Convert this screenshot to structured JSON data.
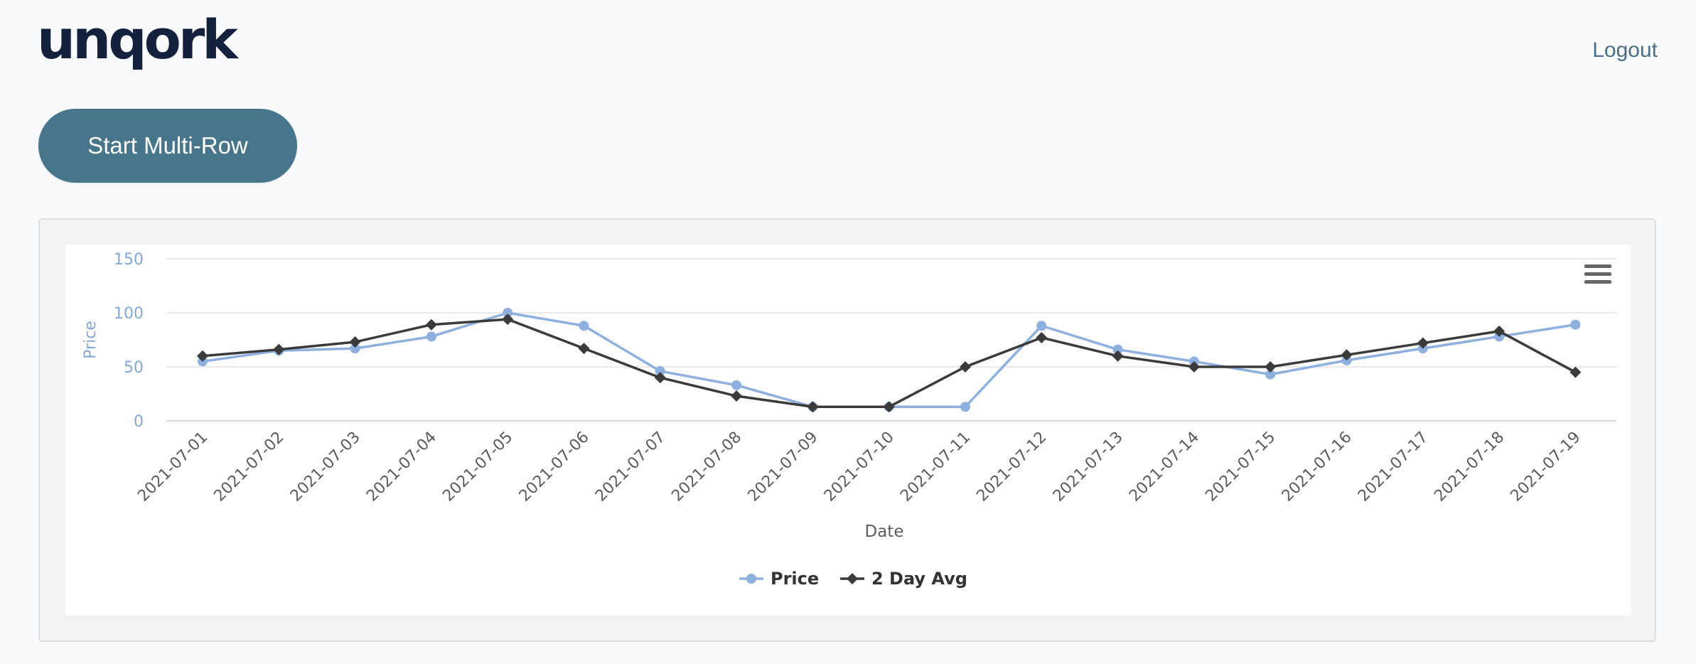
{
  "header": {
    "logo_text": "unqork",
    "logout_label": "Logout"
  },
  "actions": {
    "start_label": "Start Multi-Row"
  },
  "chart_menu": {
    "icon": "hamburger-menu-icon"
  },
  "colors": {
    "accent": "#47758c",
    "price_series": "#8db0de",
    "avg_series": "#3b3b3b",
    "axis_text": "#85a9d6",
    "label_text": "#5c5c5c"
  },
  "chart_data": {
    "type": "line",
    "title": "",
    "xlabel": "Date",
    "ylabel": "Price",
    "ylim": [
      0,
      150
    ],
    "yticks": [
      0,
      50,
      100,
      150
    ],
    "grid": true,
    "legend_position": "bottom-center",
    "categories": [
      "2021-07-01",
      "2021-07-02",
      "2021-07-03",
      "2021-07-04",
      "2021-07-05",
      "2021-07-06",
      "2021-07-07",
      "2021-07-08",
      "2021-07-09",
      "2021-07-10",
      "2021-07-11",
      "2021-07-12",
      "2021-07-13",
      "2021-07-14",
      "2021-07-15",
      "2021-07-16",
      "2021-07-17",
      "2021-07-18",
      "2021-07-19"
    ],
    "series": [
      {
        "name": "Price",
        "marker": "circle",
        "values": [
          55,
          65,
          67,
          78,
          100,
          88,
          46,
          33,
          13,
          13,
          13,
          88,
          66,
          55,
          43,
          56,
          67,
          78,
          89
        ]
      },
      {
        "name": "2 Day Avg",
        "marker": "diamond",
        "values": [
          60,
          66,
          73,
          89,
          94,
          67,
          40,
          23,
          13,
          13,
          50,
          77,
          60,
          50,
          50,
          61,
          72,
          83,
          45
        ]
      }
    ]
  }
}
